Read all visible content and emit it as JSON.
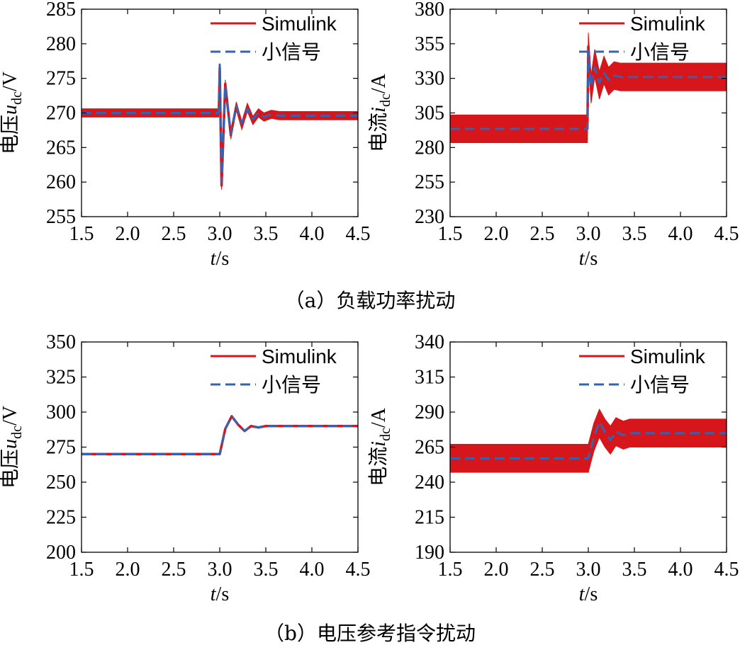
{
  "colors": {
    "simulink": "#d7161b",
    "small_signal": "#3563b0",
    "axis": "#000000"
  },
  "panels": [
    {
      "caption": "（a）负载功率扰动",
      "subplots": [
        {
          "ylabel_prefix": "电压",
          "ylabel_var": "u",
          "ylabel_sub": "dc",
          "ylabel_unit": "/V",
          "xlabel_var": "t",
          "xlabel_unit": "/s",
          "legend": [
            "Simulink",
            "小信号"
          ],
          "xticks": [
            "1.5",
            "2.0",
            "2.5",
            "3.0",
            "3.5",
            "4.0",
            "4.5"
          ],
          "yticks": [
            "255",
            "260",
            "265",
            "270",
            "275",
            "280",
            "285"
          ]
        },
        {
          "ylabel_prefix": "电流",
          "ylabel_var": "i",
          "ylabel_sub": "dc",
          "ylabel_unit": "/A",
          "xlabel_var": "t",
          "xlabel_unit": "/s",
          "legend": [
            "Simulink",
            "小信号"
          ],
          "xticks": [
            "1.5",
            "2.0",
            "2.5",
            "3.0",
            "3.5",
            "4.0",
            "4.5"
          ],
          "yticks": [
            "230",
            "255",
            "280",
            "305",
            "330",
            "355",
            "380"
          ]
        }
      ]
    },
    {
      "caption": "（b）电压参考指令扰动",
      "subplots": [
        {
          "ylabel_prefix": "电压",
          "ylabel_var": "u",
          "ylabel_sub": "dc",
          "ylabel_unit": "/V",
          "xlabel_var": "t",
          "xlabel_unit": "/s",
          "legend": [
            "Simulink",
            "小信号"
          ],
          "xticks": [
            "1.5",
            "2.0",
            "2.5",
            "3.0",
            "3.5",
            "4.0",
            "4.5"
          ],
          "yticks": [
            "200",
            "225",
            "250",
            "275",
            "300",
            "325",
            "350"
          ]
        },
        {
          "ylabel_prefix": "电流",
          "ylabel_var": "i",
          "ylabel_sub": "dc",
          "ylabel_unit": "/A",
          "xlabel_var": "t",
          "xlabel_unit": "/s",
          "legend": [
            "Simulink",
            "小信号"
          ],
          "xticks": [
            "1.5",
            "2.0",
            "2.5",
            "3.0",
            "3.5",
            "4.0",
            "4.5"
          ],
          "yticks": [
            "190",
            "215",
            "240",
            "265",
            "290",
            "315",
            "340"
          ]
        }
      ]
    }
  ],
  "chart_data": [
    {
      "type": "line",
      "title": "（a）负载功率扰动 — 电压 u_dc",
      "xlabel": "t/s",
      "ylabel": "电压u_dc/V",
      "xlim": [
        1.5,
        4.5
      ],
      "ylim": [
        255,
        285
      ],
      "series": [
        {
          "name": "Simulink",
          "ripple": 0.6,
          "x": [
            1.5,
            2.99,
            3.0,
            3.02,
            3.06,
            3.12,
            3.18,
            3.24,
            3.3,
            3.36,
            3.42,
            3.48,
            3.56,
            3.65,
            4.5
          ],
          "y": [
            270,
            270,
            276.5,
            259.5,
            274.2,
            266.8,
            271.0,
            268.2,
            270.8,
            268.9,
            270.0,
            269.4,
            269.8,
            269.6,
            269.6
          ]
        },
        {
          "name": "小信号",
          "ripple": 0,
          "x": [
            1.5,
            2.99,
            3.0,
            3.02,
            3.06,
            3.12,
            3.18,
            3.24,
            3.3,
            3.36,
            3.42,
            3.48,
            3.56,
            3.65,
            4.5
          ],
          "y": [
            270,
            270,
            277,
            260,
            274,
            267,
            271,
            268.5,
            270.6,
            269.1,
            270.0,
            269.4,
            269.8,
            269.6,
            269.6
          ]
        }
      ]
    },
    {
      "type": "line",
      "title": "（a）负载功率扰动 — 电流 i_dc",
      "xlabel": "t/s",
      "ylabel": "电流i_dc/A",
      "xlim": [
        1.5,
        4.5
      ],
      "ylim": [
        230,
        380
      ],
      "series": [
        {
          "name": "Simulink",
          "ripple": 10,
          "x": [
            1.5,
            2.99,
            3.0,
            3.03,
            3.07,
            3.12,
            3.17,
            3.22,
            3.28,
            3.35,
            4.5
          ],
          "y": [
            293.5,
            293.5,
            353,
            322,
            341,
            325,
            336,
            328,
            332,
            331,
            331
          ]
        },
        {
          "name": "小信号",
          "ripple": 0,
          "x": [
            1.5,
            2.99,
            3.0,
            3.03,
            3.07,
            3.12,
            3.17,
            3.22,
            3.28,
            3.35,
            4.5
          ],
          "y": [
            293.5,
            293.5,
            350,
            324,
            338,
            327,
            334,
            329,
            332,
            331,
            331
          ]
        }
      ]
    },
    {
      "type": "line",
      "title": "（b）电压参考指令扰动 — 电压 u_dc",
      "xlabel": "t/s",
      "ylabel": "电压u_dc/V",
      "xlim": [
        1.5,
        4.5
      ],
      "ylim": [
        200,
        350
      ],
      "series": [
        {
          "name": "Simulink",
          "ripple": 0.5,
          "x": [
            1.5,
            3.0,
            3.06,
            3.13,
            3.2,
            3.27,
            3.34,
            3.42,
            3.5,
            4.5
          ],
          "y": [
            270,
            270,
            288,
            297,
            291,
            286.5,
            290,
            289,
            290,
            290
          ]
        },
        {
          "name": "小信号",
          "ripple": 0,
          "x": [
            1.5,
            3.0,
            3.06,
            3.13,
            3.2,
            3.27,
            3.34,
            3.42,
            3.5,
            4.5
          ],
          "y": [
            270,
            270,
            288,
            297,
            291,
            286.5,
            290,
            289,
            290,
            290
          ]
        }
      ]
    },
    {
      "type": "line",
      "title": "（b）电压参考指令扰动 — 电流 i_dc",
      "xlabel": "t/s",
      "ylabel": "电流i_dc/A",
      "xlim": [
        1.5,
        4.5
      ],
      "ylim": [
        190,
        340
      ],
      "series": [
        {
          "name": "Simulink",
          "ripple": 10,
          "x": [
            1.5,
            3.0,
            3.06,
            3.12,
            3.18,
            3.24,
            3.3,
            3.38,
            3.45,
            4.5
          ],
          "y": [
            257,
            257,
            272,
            282,
            275,
            270,
            276,
            273.5,
            275,
            275
          ]
        },
        {
          "name": "小信号",
          "ripple": 0,
          "x": [
            1.5,
            3.0,
            3.06,
            3.12,
            3.18,
            3.24,
            3.3,
            3.38,
            3.45,
            4.5
          ],
          "y": [
            257,
            257,
            272,
            283,
            276,
            270,
            276,
            273.5,
            275,
            275
          ]
        }
      ]
    }
  ]
}
